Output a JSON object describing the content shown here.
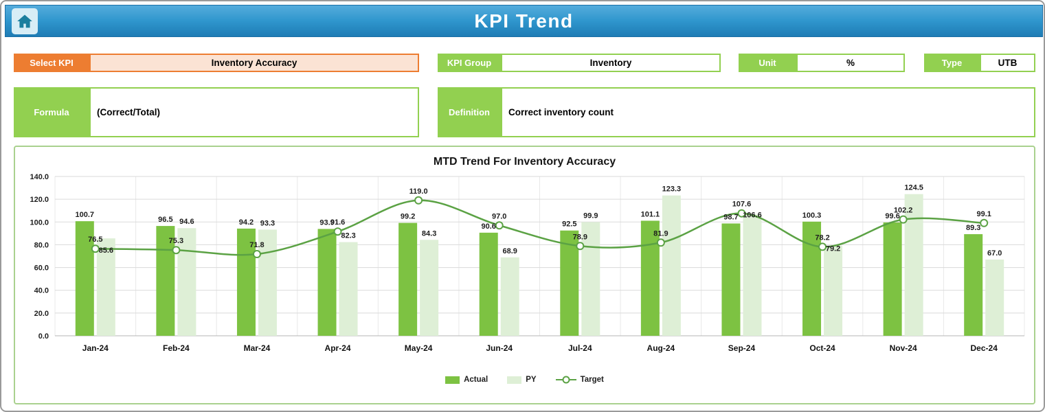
{
  "header": {
    "title": "KPI Trend"
  },
  "controls": {
    "select_kpi": {
      "label": "Select KPI",
      "value": "Inventory Accuracy"
    },
    "kpi_group": {
      "label": "KPI Group",
      "value": "Inventory"
    },
    "unit": {
      "label": "Unit",
      "value": "%"
    },
    "type": {
      "label": "Type",
      "value": "UTB"
    },
    "formula": {
      "label": "Formula",
      "value": "(Correct/Total)"
    },
    "definition": {
      "label": "Definition",
      "value": "Correct inventory count"
    }
  },
  "chart_data": {
    "type": "bar",
    "subtype": "combo-bar-line",
    "title": "MTD Trend For Inventory Accuracy",
    "categories": [
      "Jan-24",
      "Feb-24",
      "Mar-24",
      "Apr-24",
      "May-24",
      "Jun-24",
      "Jul-24",
      "Aug-24",
      "Sep-24",
      "Oct-24",
      "Nov-24",
      "Dec-24"
    ],
    "series": [
      {
        "name": "Actual",
        "kind": "bar",
        "color": "#7DC242",
        "values": [
          100.7,
          96.5,
          94.2,
          93.9,
          99.2,
          90.6,
          92.5,
          101.1,
          98.7,
          100.3,
          99.6,
          89.3
        ]
      },
      {
        "name": "PY",
        "kind": "bar",
        "color": "#DEEFD6",
        "values": [
          85.6,
          94.6,
          93.3,
          82.3,
          84.3,
          68.9,
          99.9,
          123.3,
          106.6,
          79.2,
          124.5,
          67.0
        ]
      },
      {
        "name": "Target",
        "kind": "line",
        "color": "#5BA244",
        "values": [
          76.5,
          75.3,
          71.8,
          91.6,
          119.0,
          97.0,
          78.9,
          81.9,
          107.6,
          78.2,
          102.2,
          99.1
        ]
      }
    ],
    "xlabel": "",
    "ylabel": "",
    "ylim": [
      0,
      140
    ],
    "ytick_step": 20,
    "ytick_labels": [
      "0.0",
      "20.0",
      "40.0",
      "60.0",
      "80.0",
      "100.0",
      "120.0",
      "140.0"
    ],
    "grid": true,
    "data_labels": true,
    "legend_position": "bottom"
  },
  "colors": {
    "banner_top": "#55ACDC",
    "banner_bottom": "#1E7CB5",
    "accent_green": "#92D050",
    "accent_orange": "#ED7D31",
    "orange_fill": "#FBE3D4",
    "chart_border": "#A9D18E",
    "bar_actual": "#7DC242",
    "bar_py": "#DEEFD6",
    "line_target": "#5BA244"
  }
}
